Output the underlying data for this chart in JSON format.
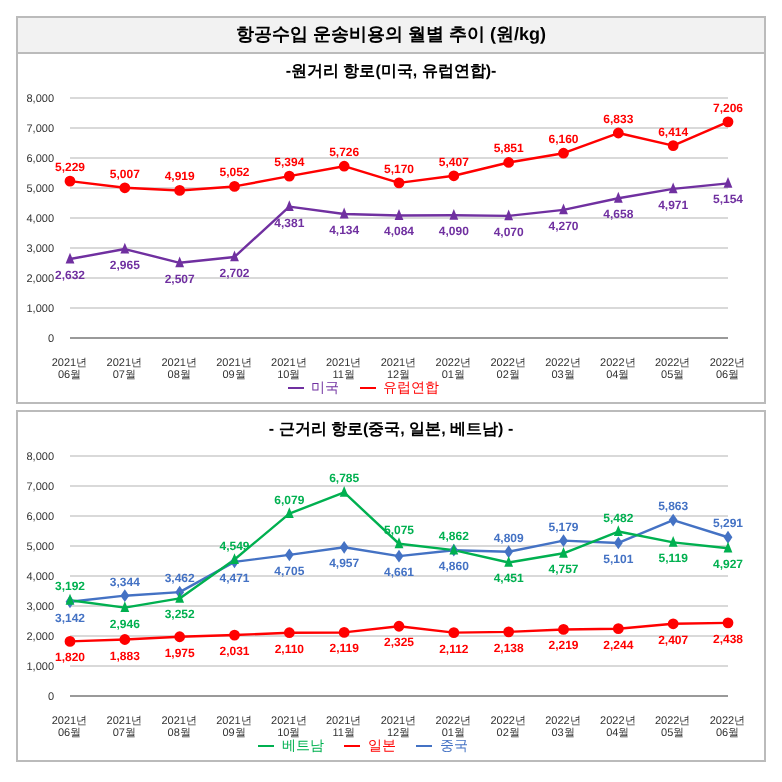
{
  "chart_data": [
    {
      "type": "line",
      "title": "항공수입 운송비용의 월별 추이 (원/kg)",
      "subtitle": "-원거리 항로(미국, 유럽연합)-",
      "categories": [
        "2021년06월",
        "2021년07월",
        "2021년08월",
        "2021년09월",
        "2021년10월",
        "2021년11월",
        "2021년12월",
        "2022년01월",
        "2022년02월",
        "2022년03월",
        "2022년04월",
        "2022년05월",
        "2022년06월"
      ],
      "series": [
        {
          "name": "미국",
          "color": "#7030a0",
          "marker": "triangle",
          "values": [
            2632,
            2965,
            2507,
            2702,
            4381,
            4134,
            4084,
            4090,
            4070,
            4270,
            4658,
            4971,
            5154
          ],
          "value_labels": [
            "2,632",
            "2,965",
            "2,507",
            "2,702",
            "4,381",
            "4,134",
            "4,084",
            "4,090",
            "4,070",
            "4,270",
            "4,658",
            "4,971",
            "5,154"
          ]
        },
        {
          "name": "유럽연합",
          "color": "#ff0000",
          "marker": "circle",
          "values": [
            5229,
            5007,
            4919,
            5052,
            5394,
            5726,
            5170,
            5407,
            5851,
            6160,
            6833,
            6414,
            7206
          ],
          "value_labels": [
            "5,229",
            "5,007",
            "4,919",
            "5,052",
            "5,394",
            "5,726",
            "5,170",
            "5,407",
            "5,851",
            "6,160",
            "6,833",
            "6,414",
            "7,206"
          ]
        }
      ],
      "ylim": [
        0,
        8000
      ],
      "yticks": [
        0,
        {
          "value": 1000,
          "label": "1,000"
        },
        {
          "value": 2000,
          "label": "2,000"
        },
        {
          "value": 3000,
          "label": "3,000"
        },
        {
          "value": 4000,
          "label": "4,000"
        },
        {
          "value": 5000,
          "label": "5,000"
        },
        {
          "value": 6000,
          "label": "6,000"
        },
        {
          "value": 7000,
          "label": "7,000"
        },
        {
          "value": 8000,
          "label": "8,000"
        }
      ],
      "grid": "y",
      "legend": "bottom"
    },
    {
      "type": "line",
      "title": "- 근거리 항로(중국, 일본, 베트남) -",
      "categories": [
        "2021년06월",
        "2021년07월",
        "2021년08월",
        "2021년09월",
        "2021년10월",
        "2021년11월",
        "2021년12월",
        "2022년01월",
        "2022년02월",
        "2022년03월",
        "2022년04월",
        "2022년05월",
        "2022년06월"
      ],
      "series": [
        {
          "name": "중국",
          "color": "#4472c4",
          "marker": "diamond",
          "values": [
            3142,
            3344,
            3462,
            4471,
            4705,
            4957,
            4661,
            4860,
            4809,
            5179,
            5101,
            5863,
            5291
          ],
          "value_labels": [
            "3,142",
            "3,344",
            "3,462",
            "4,471",
            "4,705",
            "4,957",
            "4,661",
            "4,860",
            "4,809",
            "5,179",
            "5,101",
            "5,863",
            "5,291"
          ]
        },
        {
          "name": "일본",
          "color": "#ff0000",
          "marker": "circle",
          "values": [
            1820,
            1883,
            1975,
            2031,
            2110,
            2119,
            2325,
            2112,
            2138,
            2219,
            2244,
            2407,
            2438
          ],
          "value_labels": [
            "1,820",
            "1,883",
            "1,975",
            "2,031",
            "2,110",
            "2,119",
            "2,325",
            "2,112",
            "2,138",
            "2,219",
            "2,244",
            "2,407",
            "2,438"
          ]
        },
        {
          "name": "베트남",
          "color": "#00b050",
          "marker": "triangle",
          "values": [
            3192,
            2946,
            3252,
            4549,
            6079,
            6785,
            5075,
            4862,
            4451,
            4757,
            5482,
            5119,
            4927
          ],
          "value_labels": [
            "3,192",
            "2,946",
            "3,252",
            "4,549",
            "6,079",
            "6,785",
            "5,075",
            "4,862",
            "4,451",
            "4,757",
            "5,482",
            "5,119",
            "4,927"
          ]
        }
      ],
      "ylim": [
        0,
        8000
      ],
      "yticks": [
        0,
        {
          "value": 1000,
          "label": "1,000"
        },
        {
          "value": 2000,
          "label": "2,000"
        },
        {
          "value": 3000,
          "label": "3,000"
        },
        {
          "value": 4000,
          "label": "4,000"
        },
        {
          "value": 5000,
          "label": "5,000"
        },
        {
          "value": 6000,
          "label": "6,000"
        },
        {
          "value": 7000,
          "label": "7,000"
        },
        {
          "value": 8000,
          "label": "8,000"
        }
      ],
      "grid": "y",
      "legend": "bottom"
    }
  ]
}
